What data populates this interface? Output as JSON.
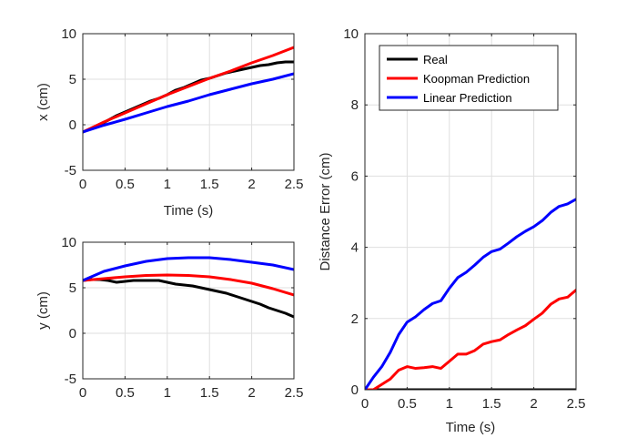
{
  "chart_data": [
    {
      "type": "line",
      "xlabel": "Time (s)",
      "ylabel": "x (cm)",
      "xlim": [
        0,
        2.5
      ],
      "ylim": [
        -5,
        10
      ],
      "xticks": [
        "0",
        "0.5",
        "1",
        "1.5",
        "2",
        "2.5"
      ],
      "yticks": [
        "-5",
        "0",
        "5",
        "10"
      ],
      "grid": true,
      "series": [
        {
          "name": "Real",
          "color": "#000000",
          "x": [
            0,
            0.1,
            0.2,
            0.3,
            0.4,
            0.5,
            0.6,
            0.7,
            0.8,
            0.9,
            1.0,
            1.1,
            1.2,
            1.3,
            1.4,
            1.5,
            1.6,
            1.7,
            1.8,
            1.9,
            2.0,
            2.1,
            2.2,
            2.3,
            2.4,
            2.5
          ],
          "y": [
            -0.8,
            -0.4,
            0.0,
            0.5,
            1.0,
            1.4,
            1.8,
            2.2,
            2.6,
            2.9,
            3.3,
            3.8,
            4.1,
            4.5,
            4.9,
            5.1,
            5.4,
            5.7,
            5.9,
            6.1,
            6.3,
            6.5,
            6.6,
            6.8,
            6.9,
            6.9
          ]
        },
        {
          "name": "Koopman Prediction",
          "color": "#ff0000",
          "x": [
            0,
            0.25,
            0.5,
            0.75,
            1.0,
            1.25,
            1.5,
            1.75,
            2.0,
            2.25,
            2.5
          ],
          "y": [
            -0.8,
            0.3,
            1.3,
            2.3,
            3.3,
            4.2,
            5.1,
            5.9,
            6.8,
            7.6,
            8.5
          ]
        },
        {
          "name": "Linear Prediction",
          "color": "#0000ff",
          "x": [
            0,
            0.25,
            0.5,
            0.75,
            1.0,
            1.25,
            1.5,
            1.75,
            2.0,
            2.25,
            2.5
          ],
          "y": [
            -0.8,
            -0.05,
            0.6,
            1.3,
            2.0,
            2.6,
            3.3,
            3.9,
            4.5,
            5.0,
            5.6
          ]
        }
      ]
    },
    {
      "type": "line",
      "xlabel": "",
      "ylabel": "y (cm)",
      "xlim": [
        0,
        2.5
      ],
      "ylim": [
        -5,
        10
      ],
      "xticks": [
        "0",
        "0.5",
        "1",
        "1.5",
        "2",
        "2.5"
      ],
      "yticks": [
        "-5",
        "0",
        "5",
        "10"
      ],
      "grid": true,
      "series": [
        {
          "name": "Real",
          "color": "#000000",
          "x": [
            0,
            0.1,
            0.2,
            0.3,
            0.4,
            0.5,
            0.6,
            0.7,
            0.8,
            0.9,
            1.0,
            1.1,
            1.2,
            1.3,
            1.4,
            1.5,
            1.6,
            1.7,
            1.8,
            1.9,
            2.0,
            2.1,
            2.2,
            2.3,
            2.4,
            2.5
          ],
          "y": [
            5.8,
            5.9,
            5.9,
            5.8,
            5.6,
            5.7,
            5.8,
            5.8,
            5.8,
            5.8,
            5.6,
            5.4,
            5.3,
            5.2,
            5.0,
            4.8,
            4.6,
            4.4,
            4.1,
            3.8,
            3.5,
            3.2,
            2.8,
            2.5,
            2.2,
            1.8
          ]
        },
        {
          "name": "Koopman Prediction",
          "color": "#ff0000",
          "x": [
            0,
            0.25,
            0.5,
            0.75,
            1.0,
            1.25,
            1.5,
            1.75,
            2.0,
            2.25,
            2.5
          ],
          "y": [
            5.8,
            6.0,
            6.2,
            6.35,
            6.4,
            6.35,
            6.2,
            5.9,
            5.5,
            4.9,
            4.2
          ]
        },
        {
          "name": "Linear Prediction",
          "color": "#0000ff",
          "x": [
            0,
            0.25,
            0.5,
            0.75,
            1.0,
            1.25,
            1.5,
            1.75,
            2.0,
            2.25,
            2.5
          ],
          "y": [
            5.8,
            6.8,
            7.4,
            7.9,
            8.2,
            8.3,
            8.3,
            8.1,
            7.8,
            7.5,
            7.0
          ]
        }
      ]
    },
    {
      "type": "line",
      "xlabel": "Time (s)",
      "ylabel": "Distance Error (cm)",
      "xlim": [
        0,
        2.5
      ],
      "ylim": [
        0,
        10
      ],
      "xticks": [
        "0",
        "0.5",
        "1",
        "1.5",
        "2",
        "2.5"
      ],
      "yticks": [
        "0",
        "2",
        "4",
        "6",
        "8",
        "10"
      ],
      "grid": true,
      "legend": "top-left",
      "series": [
        {
          "name": "Real",
          "color": "#000000",
          "x": [
            0,
            2.5
          ],
          "y": [
            0,
            0
          ]
        },
        {
          "name": "Koopman Prediction",
          "color": "#ff0000",
          "x": [
            0,
            0.1,
            0.2,
            0.3,
            0.4,
            0.5,
            0.6,
            0.7,
            0.8,
            0.9,
            1.0,
            1.1,
            1.2,
            1.3,
            1.4,
            1.5,
            1.6,
            1.7,
            1.8,
            1.9,
            2.0,
            2.1,
            2.2,
            2.3,
            2.4,
            2.5
          ],
          "y": [
            0,
            0.0,
            0.15,
            0.3,
            0.55,
            0.65,
            0.6,
            0.62,
            0.65,
            0.6,
            0.8,
            1.0,
            1.0,
            1.1,
            1.28,
            1.35,
            1.4,
            1.55,
            1.68,
            1.8,
            1.98,
            2.15,
            2.4,
            2.55,
            2.6,
            2.8
          ]
        },
        {
          "name": "Linear Prediction",
          "color": "#0000ff",
          "x": [
            0,
            0.1,
            0.2,
            0.3,
            0.4,
            0.5,
            0.6,
            0.7,
            0.8,
            0.9,
            1.0,
            1.1,
            1.2,
            1.3,
            1.4,
            1.5,
            1.6,
            1.7,
            1.8,
            1.9,
            2.0,
            2.1,
            2.2,
            2.3,
            2.4,
            2.5
          ],
          "y": [
            0,
            0.35,
            0.65,
            1.05,
            1.55,
            1.9,
            2.05,
            2.25,
            2.42,
            2.5,
            2.85,
            3.15,
            3.3,
            3.5,
            3.72,
            3.88,
            3.95,
            4.12,
            4.3,
            4.45,
            4.58,
            4.75,
            4.98,
            5.15,
            5.22,
            5.35
          ]
        }
      ]
    }
  ]
}
